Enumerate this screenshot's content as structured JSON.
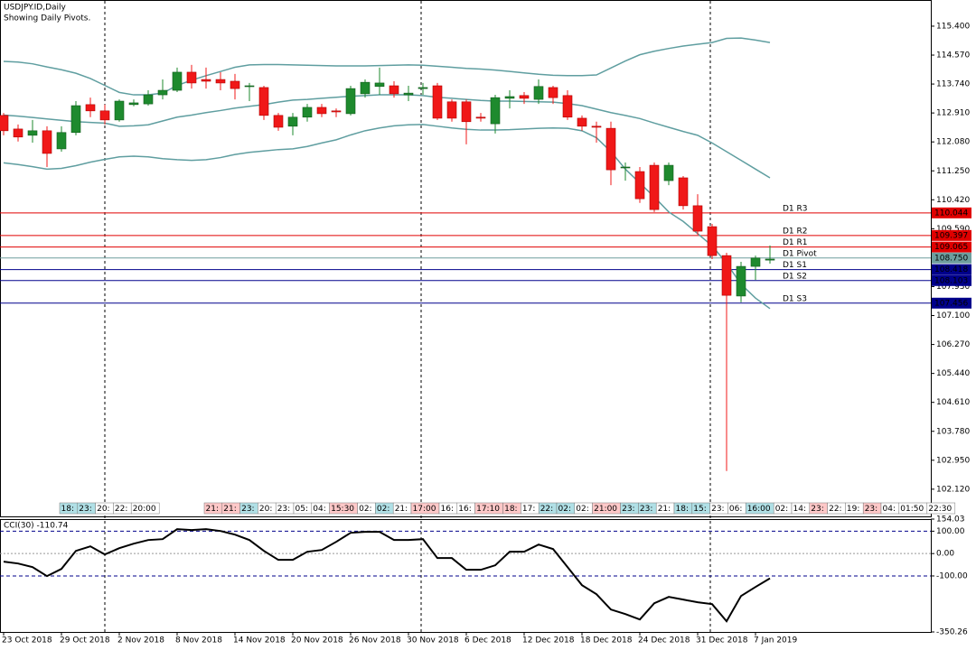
{
  "header": {
    "symbol": "USDJPY.ID,Daily",
    "note": "Showing Daily Pivots."
  },
  "chart_data": [
    {
      "type": "candlestick",
      "categories": [
        "23 Oct 2018",
        null,
        null,
        null,
        "29 Oct 2018",
        null,
        null,
        null,
        "2 Nov 2018",
        null,
        null,
        null,
        "8 Nov 2018",
        null,
        null,
        null,
        "14 Nov 2018",
        null,
        null,
        null,
        "20 Nov 2018",
        null,
        null,
        null,
        "26 Nov 2018",
        null,
        null,
        null,
        "30 Nov 2018",
        null,
        null,
        null,
        "6 Dec 2018",
        null,
        null,
        null,
        "12 Dec 2018",
        null,
        null,
        null,
        "18 Dec 2018",
        null,
        null,
        null,
        "24 Dec 2018",
        null,
        null,
        null,
        "31 Dec 2018",
        null,
        null,
        null,
        "7 Jan 2019",
        null
      ],
      "open": [
        112.84,
        112.45,
        112.27,
        112.4,
        111.88,
        112.35,
        113.15,
        112.97,
        112.71,
        113.15,
        113.17,
        113.43,
        113.56,
        114.08,
        113.87,
        113.87,
        113.82,
        113.67,
        113.64,
        112.84,
        112.53,
        112.79,
        113.07,
        112.97,
        112.89,
        113.46,
        113.67,
        113.69,
        113.43,
        113.61,
        113.69,
        113.23,
        113.23,
        112.79,
        112.6,
        113.33,
        113.41,
        113.3,
        113.64,
        113.41,
        112.76,
        112.53,
        112.47,
        111.34,
        111.23,
        111.41,
        110.97,
        111.05,
        110.25,
        109.65,
        108.82,
        107.66,
        108.51,
        108.69
      ],
      "high": [
        112.91,
        112.58,
        112.71,
        112.53,
        112.53,
        113.25,
        113.35,
        113.15,
        113.3,
        113.3,
        113.56,
        113.87,
        114.21,
        114.29,
        114.21,
        114.08,
        114.03,
        113.77,
        113.69,
        112.91,
        112.91,
        113.17,
        113.17,
        113.04,
        113.69,
        113.87,
        114.21,
        113.82,
        113.69,
        113.77,
        113.77,
        113.3,
        113.3,
        112.91,
        113.43,
        113.56,
        113.51,
        113.87,
        113.69,
        113.56,
        112.84,
        112.66,
        112.66,
        111.49,
        111.36,
        111.49,
        111.49,
        111.1,
        110.58,
        109.73,
        108.9,
        108.64,
        108.82,
        109.11
      ],
      "low": [
        112.27,
        112.09,
        112.06,
        111.36,
        111.8,
        112.27,
        112.79,
        112.58,
        112.66,
        113.1,
        113.12,
        113.3,
        113.51,
        113.61,
        113.61,
        113.56,
        113.3,
        113.25,
        112.71,
        112.4,
        112.27,
        112.66,
        112.79,
        112.79,
        112.84,
        113.35,
        113.43,
        113.35,
        113.25,
        113.43,
        112.71,
        112.66,
        112.01,
        112.66,
        112.32,
        113.04,
        113.17,
        113.17,
        113.17,
        112.71,
        112.4,
        112.06,
        110.84,
        110.97,
        110.33,
        110.07,
        110.84,
        110.14,
        109.42,
        108.72,
        102.64,
        107.48,
        108.12,
        108.59
      ],
      "close": [
        112.4,
        112.22,
        112.4,
        111.75,
        112.35,
        113.12,
        112.97,
        112.71,
        113.25,
        113.2,
        113.43,
        113.56,
        114.08,
        113.77,
        113.82,
        113.77,
        113.61,
        113.69,
        112.84,
        112.5,
        112.79,
        113.07,
        112.89,
        112.94,
        113.61,
        113.79,
        113.77,
        113.46,
        113.48,
        113.64,
        112.76,
        112.76,
        112.66,
        112.76,
        113.35,
        113.38,
        113.33,
        113.67,
        113.35,
        112.79,
        112.53,
        112.5,
        111.28,
        111.36,
        110.45,
        110.14,
        111.41,
        110.25,
        109.52,
        108.82,
        107.68,
        108.51,
        108.75,
        108.72
      ],
      "up_color": "#1e8a2e",
      "down_color": "#f01818",
      "series": [
        {
          "color": "#5f9ea0",
          "values": [
            114.39,
            114.37,
            114.32,
            114.23,
            114.15,
            114.05,
            113.9,
            113.7,
            113.5,
            113.43,
            113.43,
            113.48,
            113.7,
            113.85,
            113.98,
            114.1,
            114.22,
            114.29,
            114.3,
            114.3,
            114.29,
            114.28,
            114.27,
            114.26,
            114.26,
            114.26,
            114.27,
            114.28,
            114.29,
            114.28,
            114.25,
            114.22,
            114.19,
            114.17,
            114.14,
            114.1,
            114.06,
            114.02,
            113.99,
            113.98,
            113.98,
            114.0,
            114.2,
            114.4,
            114.58,
            114.68,
            114.76,
            114.83,
            114.88,
            114.93,
            115.05,
            115.06,
            115.0,
            114.93
          ]
        },
        {
          "color": "#5f9ea0",
          "values": [
            112.85,
            112.82,
            112.78,
            112.74,
            112.7,
            112.66,
            112.64,
            112.62,
            112.53,
            112.54,
            112.57,
            112.68,
            112.79,
            112.85,
            112.92,
            112.98,
            113.05,
            113.1,
            113.15,
            113.22,
            113.28,
            113.3,
            113.33,
            113.36,
            113.39,
            113.41,
            113.43,
            113.43,
            113.43,
            113.41,
            113.36,
            113.33,
            113.3,
            113.27,
            113.25,
            113.25,
            113.24,
            113.23,
            113.22,
            113.18,
            113.12,
            113.02,
            112.92,
            112.84,
            112.75,
            112.62,
            112.5,
            112.38,
            112.27,
            112.05,
            111.8,
            111.55,
            111.3,
            111.05
          ]
        },
        {
          "color": "#5f9ea0",
          "values": [
            111.48,
            111.43,
            111.37,
            111.3,
            111.32,
            111.4,
            111.5,
            111.58,
            111.65,
            111.67,
            111.65,
            111.6,
            111.57,
            111.55,
            111.57,
            111.63,
            111.72,
            111.78,
            111.82,
            111.86,
            111.88,
            111.95,
            112.05,
            112.14,
            112.28,
            112.4,
            112.48,
            112.54,
            112.57,
            112.58,
            112.53,
            112.48,
            112.44,
            112.42,
            112.42,
            112.43,
            112.45,
            112.47,
            112.48,
            112.47,
            112.4,
            112.2,
            111.8,
            111.3,
            110.9,
            110.5,
            110.07,
            109.8,
            109.45,
            109.1,
            108.6,
            108.0,
            107.6,
            107.3
          ]
        }
      ],
      "pivots": [
        {
          "name": "D1 R3",
          "value": 110.044,
          "value_label": "110.044",
          "color": "#e00000"
        },
        {
          "name": "D1 R2",
          "value": 109.397,
          "value_label": "109.397",
          "color": "#e00000"
        },
        {
          "name": "D1 R1",
          "value": 109.065,
          "value_label": "109.065",
          "color": "#e00000"
        },
        {
          "name": "D1 Pivot",
          "value": 108.75,
          "value_label": "108.750",
          "color": "#6e9e9e"
        },
        {
          "name": "D1 S1",
          "value": 108.418,
          "value_label": "108.418",
          "color": "#00008b"
        },
        {
          "name": "D1 S2",
          "value": 108.103,
          "value_label": "108.103",
          "color": "#00008b"
        },
        {
          "name": "D1 S3",
          "value": 107.456,
          "value_label": "107.456",
          "color": "#00008b"
        }
      ],
      "ylim": [
        101.34,
        116.15
      ],
      "yticks": [
        {
          "value": 115.4,
          "label": "115.400"
        },
        {
          "value": 114.57,
          "label": "114.570"
        },
        {
          "value": 113.74,
          "label": "113.740"
        },
        {
          "value": 112.91,
          "label": "112.910"
        },
        {
          "value": 112.08,
          "label": "112.080"
        },
        {
          "value": 111.25,
          "label": "111.250"
        },
        {
          "value": 110.42,
          "label": "110.420"
        },
        {
          "value": 109.59,
          "label": "109.590"
        },
        {
          "value": 107.93,
          "label": "107.930"
        },
        {
          "value": 107.1,
          "label": "107.100"
        },
        {
          "value": 106.27,
          "label": "106.270"
        },
        {
          "value": 105.44,
          "label": "105.440"
        },
        {
          "value": 104.61,
          "label": "104.610"
        },
        {
          "value": 103.78,
          "label": "103.780"
        },
        {
          "value": 102.95,
          "label": "102.950"
        },
        {
          "value": 102.12,
          "label": "102.120"
        }
      ],
      "sessions": [
        [
          {
            "text": "18:",
            "color": "#b0e0e6"
          },
          {
            "text": "23:",
            "color": "#b0e0e6"
          },
          {
            "text": "20:",
            "color": "#ffffff"
          },
          {
            "text": "22:",
            "color": "#ffffff"
          },
          {
            "text": "20:00",
            "color": "#ffffff"
          }
        ],
        [
          {
            "text": "21:",
            "color": "#ffc8c8"
          },
          {
            "text": "21:",
            "color": "#ffc8c8"
          },
          {
            "text": "23:",
            "color": "#b0e0e6"
          },
          {
            "text": "20:",
            "color": "#ffffff"
          },
          {
            "text": "23:",
            "color": "#ffffff"
          },
          {
            "text": "05:",
            "color": "#ffffff"
          },
          {
            "text": "04:",
            "color": "#ffffff"
          },
          {
            "text": "15:30",
            "color": "#ffc8c8"
          },
          {
            "text": "02:",
            "color": "#ffffff"
          },
          {
            "text": "02:",
            "color": "#b0e0e6"
          },
          {
            "text": "21:",
            "color": "#ffffff"
          },
          {
            "text": "17:00",
            "color": "#ffc8c8"
          },
          {
            "text": "16:",
            "color": "#ffffff"
          },
          {
            "text": "16:",
            "color": "#ffffff"
          },
          {
            "text": "17:10",
            "color": "#ffc8c8"
          },
          {
            "text": "18:",
            "color": "#ffc8c8"
          },
          {
            "text": "17:",
            "color": "#ffffff"
          },
          {
            "text": "22:",
            "color": "#b0e0e6"
          },
          {
            "text": "02:",
            "color": "#b0e0e6"
          },
          {
            "text": "02:",
            "color": "#ffffff"
          },
          {
            "text": "21:00",
            "color": "#ffc8c8"
          },
          {
            "text": "23:",
            "color": "#b0e0e6"
          },
          {
            "text": "23:",
            "color": "#b0e0e6"
          },
          {
            "text": "21:",
            "color": "#ffffff"
          },
          {
            "text": "18:",
            "color": "#b0e0e6"
          },
          {
            "text": "15:",
            "color": "#b0e0e6"
          },
          {
            "text": "23:",
            "color": "#ffffff"
          },
          {
            "text": "06:",
            "color": "#ffffff"
          },
          {
            "text": "16:00",
            "color": "#b0e0e6"
          },
          {
            "text": "02:",
            "color": "#ffffff"
          },
          {
            "text": "14:",
            "color": "#ffffff"
          },
          {
            "text": "23:",
            "color": "#ffc8c8"
          },
          {
            "text": "22:",
            "color": "#ffffff"
          },
          {
            "text": "19:",
            "color": "#ffffff"
          },
          {
            "text": "23:",
            "color": "#ffc8c8"
          },
          {
            "text": "04:",
            "color": "#ffffff"
          },
          {
            "text": "01:50",
            "color": "#ffffff"
          },
          {
            "text": "22:30",
            "color": "#ffffff"
          }
        ]
      ]
    },
    {
      "type": "line",
      "title": "CCI(30) -110.74",
      "color": "#000000",
      "values": [
        -36.3,
        -44.4,
        -60.5,
        -100.8,
        -68.6,
        12.1,
        32.3,
        -4,
        24.2,
        44.4,
        60.5,
        64.5,
        108.9,
        104.9,
        108.9,
        100.8,
        84.7,
        60.5,
        12.1,
        -28.2,
        -28.2,
        8.1,
        16.1,
        52.4,
        92.8,
        96.8,
        96.8,
        60.5,
        60.5,
        64.5,
        -20.2,
        -20.2,
        -72.6,
        -72.6,
        -52.4,
        8.1,
        8.1,
        40.3,
        20.2,
        -60.5,
        -141.2,
        -181.5,
        -250.1,
        -270.3,
        -294.5,
        -221.9,
        -193.6,
        -205.7,
        -217.8,
        -225.9,
        -302.5,
        -189.6,
        -149.3,
        -110.74
      ],
      "levels": [
        100,
        0,
        -100
      ],
      "ylim": [
        -350.26,
        154.03
      ],
      "yticks": [
        {
          "value": 154.03,
          "label": "154.03"
        },
        {
          "value": 100,
          "label": "100.00"
        },
        {
          "value": 0,
          "label": "0.00"
        },
        {
          "value": -100,
          "label": "-100.00"
        },
        {
          "value": -350.26,
          "label": "-350.26"
        }
      ]
    }
  ]
}
